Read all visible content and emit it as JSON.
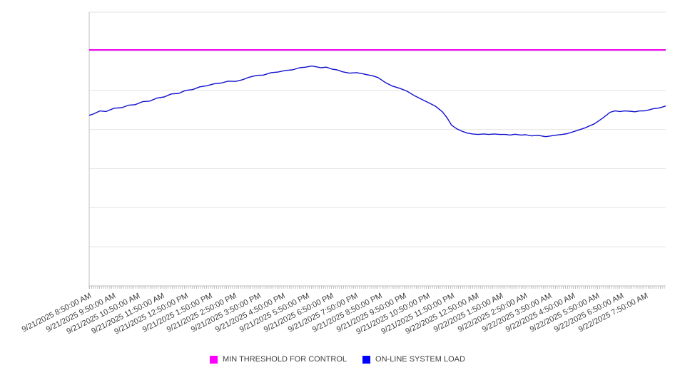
{
  "chart_data": {
    "type": "line",
    "title": "",
    "xlabel": "",
    "ylabel": "",
    "x_unit": "hours since 9/21/2025 8:50:00 AM",
    "x_range_hours": [
      0,
      23.83
    ],
    "x_label_interval_hours": 1,
    "x_tick_labels": [
      "9/21/2025 8:50:00 AM",
      "9/21/2025 9:50:00 AM",
      "9/21/2025 10:50:00 AM",
      "9/21/2025 11:50:00 AM",
      "9/21/2025 12:50:00 PM",
      "9/21/2025 1:50:00 PM",
      "9/21/2025 2:50:00 PM",
      "9/21/2025 3:50:00 PM",
      "9/21/2025 4:50:00 PM",
      "9/21/2025 5:50:00 PM",
      "9/21/2025 6:50:00 PM",
      "9/21/2025 7:50:00 PM",
      "9/21/2025 8:50:00 PM",
      "9/21/2025 9:50:00 PM",
      "9/21/2025 10:50:00 PM",
      "9/21/2025 11:50:00 PM",
      "9/22/2025 12:50:00 AM",
      "9/22/2025 1:50:00 AM",
      "9/22/2025 2:50:00 AM",
      "9/22/2025 3:50:00 AM",
      "9/22/2025 4:50:00 AM",
      "9/22/2025 5:50:00 AM",
      "9/22/2025 6:50:00 AM",
      "9/22/2025 7:50:00 AM"
    ],
    "y_axis": {
      "labels_visible": false,
      "assumed_range": [
        0,
        100
      ],
      "gridlines": 8,
      "grid": "horizontal"
    },
    "legend_position": "bottom-center",
    "series": [
      {
        "name": "MIN THRESHOLD FOR CONTROL",
        "type": "constant-threshold",
        "color": "#f000f0",
        "legend_color": "#ff00ff",
        "value": 86.2
      },
      {
        "name": "ON-LINE SYSTEM LOAD",
        "type": "line",
        "color": "#0f0fcc",
        "legend_color": "#0000ff",
        "points": [
          [
            0,
            62.3
          ],
          [
            0.2,
            62.9
          ],
          [
            0.44,
            63.9
          ],
          [
            0.7,
            63.7
          ],
          [
            1.03,
            64.9
          ],
          [
            1.35,
            65.1
          ],
          [
            1.62,
            66.0
          ],
          [
            1.9,
            66.2
          ],
          [
            2.21,
            67.3
          ],
          [
            2.5,
            67.5
          ],
          [
            2.8,
            68.6
          ],
          [
            3.1,
            69.0
          ],
          [
            3.39,
            70.1
          ],
          [
            3.7,
            70.3
          ],
          [
            3.98,
            71.4
          ],
          [
            4.27,
            71.7
          ],
          [
            4.57,
            72.7
          ],
          [
            4.86,
            73.1
          ],
          [
            5.16,
            73.8
          ],
          [
            5.45,
            74.1
          ],
          [
            5.75,
            74.8
          ],
          [
            6.05,
            74.7
          ],
          [
            6.34,
            75.3
          ],
          [
            6.6,
            76.2
          ],
          [
            6.93,
            76.9
          ],
          [
            7.2,
            77.0
          ],
          [
            7.52,
            77.9
          ],
          [
            7.8,
            78.1
          ],
          [
            8.11,
            78.7
          ],
          [
            8.4,
            78.9
          ],
          [
            8.7,
            79.7
          ],
          [
            8.95,
            79.9
          ],
          [
            9.2,
            80.3
          ],
          [
            9.4,
            80.0
          ],
          [
            9.58,
            79.7
          ],
          [
            9.8,
            79.9
          ],
          [
            10.03,
            79.2
          ],
          [
            10.25,
            78.9
          ],
          [
            10.47,
            78.2
          ],
          [
            10.76,
            77.7
          ],
          [
            11.06,
            77.9
          ],
          [
            11.3,
            77.5
          ],
          [
            11.5,
            77.1
          ],
          [
            11.7,
            76.8
          ],
          [
            11.94,
            76.1
          ],
          [
            12.24,
            74.3
          ],
          [
            12.53,
            73.0
          ],
          [
            12.83,
            72.2
          ],
          [
            13.12,
            71.2
          ],
          [
            13.42,
            69.6
          ],
          [
            13.71,
            68.3
          ],
          [
            14.01,
            67.0
          ],
          [
            14.3,
            65.7
          ],
          [
            14.6,
            63.6
          ],
          [
            14.8,
            61.3
          ],
          [
            14.98,
            58.7
          ],
          [
            15.19,
            57.4
          ],
          [
            15.4,
            56.5
          ],
          [
            15.63,
            55.8
          ],
          [
            15.85,
            55.5
          ],
          [
            16.07,
            55.3
          ],
          [
            16.3,
            55.5
          ],
          [
            16.51,
            55.3
          ],
          [
            16.75,
            55.5
          ],
          [
            16.96,
            55.3
          ],
          [
            17.2,
            55.3
          ],
          [
            17.4,
            55.1
          ],
          [
            17.6,
            55.4
          ],
          [
            17.84,
            55.1
          ],
          [
            18.05,
            55.2
          ],
          [
            18.28,
            54.8
          ],
          [
            18.55,
            55.0
          ],
          [
            18.87,
            54.5
          ],
          [
            19.1,
            54.8
          ],
          [
            19.32,
            55.1
          ],
          [
            19.55,
            55.3
          ],
          [
            19.76,
            55.6
          ],
          [
            20.11,
            56.6
          ],
          [
            20.49,
            57.7
          ],
          [
            20.88,
            59.2
          ],
          [
            21.23,
            61.3
          ],
          [
            21.53,
            63.4
          ],
          [
            21.73,
            63.9
          ],
          [
            21.95,
            63.7
          ],
          [
            22.12,
            63.9
          ],
          [
            22.35,
            63.8
          ],
          [
            22.56,
            63.6
          ],
          [
            22.75,
            63.9
          ],
          [
            22.94,
            63.9
          ],
          [
            23.15,
            64.3
          ],
          [
            23.3,
            64.7
          ],
          [
            23.5,
            64.9
          ],
          [
            23.65,
            65.2
          ],
          [
            23.83,
            65.7
          ]
        ]
      }
    ],
    "colors": {
      "gridline": "#e4e4e4",
      "axis": "#bfbfbf",
      "tick": "#c0c0c0",
      "tick_label_text": "#3d3d3d",
      "legend_text": "#404040",
      "background": "#ffffff"
    }
  },
  "legend": {
    "items": [
      {
        "label": "MIN THRESHOLD FOR CONTROL",
        "color": "#ff00ff"
      },
      {
        "label": "ON-LINE SYSTEM LOAD",
        "color": "#0000ff"
      }
    ]
  }
}
